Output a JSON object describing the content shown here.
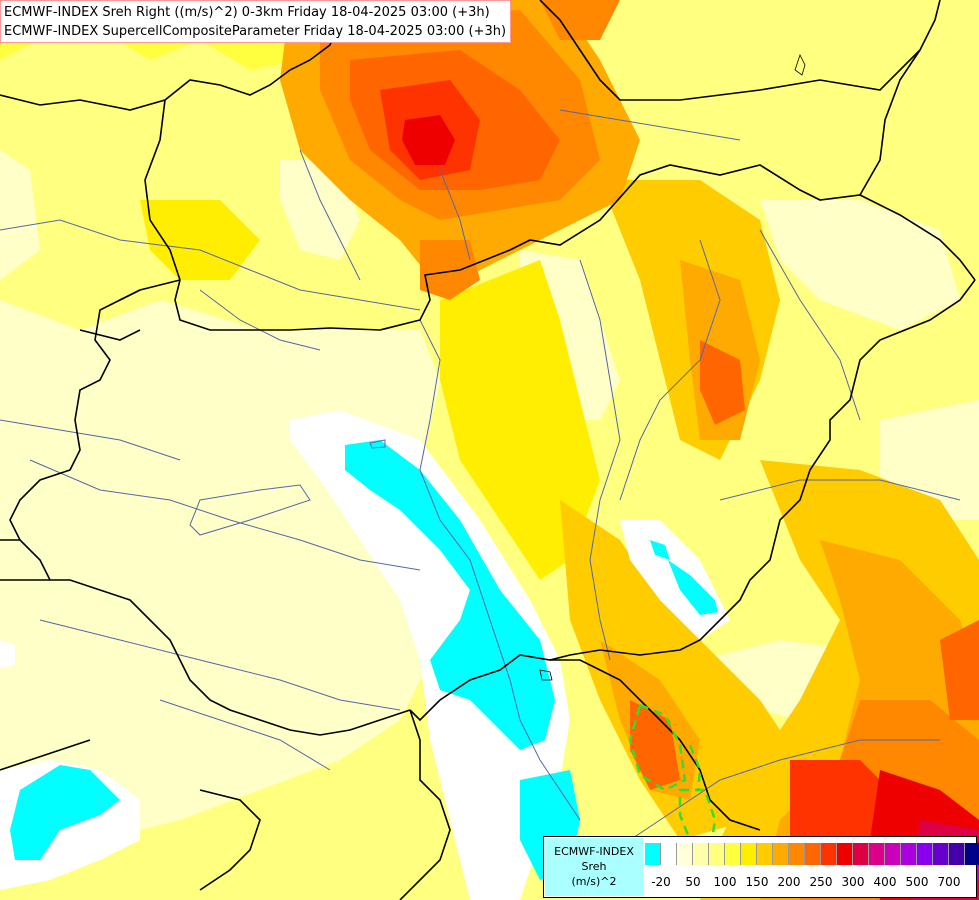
{
  "titles": {
    "line1": "ECMWF-INDEX Sreh Right ((m/s)^2) 0-3km Friday 18-04-2025 03:00 (+3h)",
    "line2": "ECMWF-INDEX SupercellCompositeParameter Friday 18-04-2025 03:00 (+3h)"
  },
  "legend": {
    "source": "ECMWF-INDEX",
    "parameter": "Sreh",
    "unit": "(m/s)^2",
    "colors": [
      "#00ffff",
      "#ffffff",
      "#ffffd8",
      "#ffffaa",
      "#ffff80",
      "#ffff40",
      "#ffee00",
      "#ffcc00",
      "#ffaa00",
      "#ff8800",
      "#ff6600",
      "#ff3300",
      "#ee0000",
      "#dd0044",
      "#dd0088",
      "#cc00bb",
      "#aa00dd",
      "#8800ee",
      "#6600cc",
      "#4400aa",
      "#000088"
    ],
    "ticks": [
      "-20",
      "50",
      "100",
      "150",
      "200",
      "250",
      "300",
      "400",
      "500",
      "700"
    ]
  },
  "colors": {
    "sea": "#00ffff",
    "coast_white": "#ffffff",
    "borders": "#000000",
    "rivers": "#5566aa",
    "scp_contour": "#33dd33"
  }
}
